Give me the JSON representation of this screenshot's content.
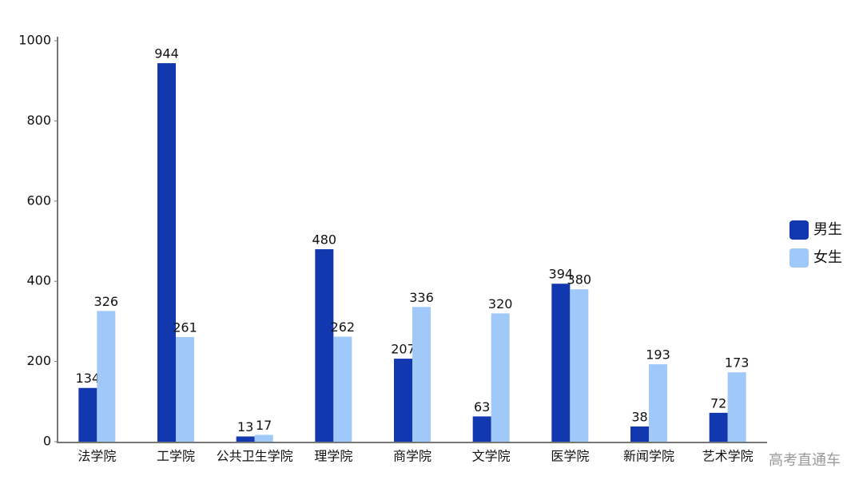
{
  "chart_data": {
    "type": "bar",
    "categories": [
      "法学院",
      "工学院",
      "公共卫生学院",
      "理学院",
      "商学院",
      "文学院",
      "医学院",
      "新闻学院",
      "艺术学院"
    ],
    "series": [
      {
        "name": "男生",
        "color": "#1238b0",
        "values": [
          134,
          944,
          13,
          480,
          207,
          63,
          394,
          38,
          72
        ]
      },
      {
        "name": "女生",
        "color": "#a0c8f8",
        "values": [
          326,
          261,
          17,
          262,
          336,
          320,
          380,
          193,
          173
        ]
      }
    ],
    "ylim": [
      0,
      1000
    ],
    "yticks": [
      0,
      200,
      400,
      600,
      800,
      1000
    ],
    "grid": false,
    "legend": "right",
    "watermark": "高考直通车"
  }
}
